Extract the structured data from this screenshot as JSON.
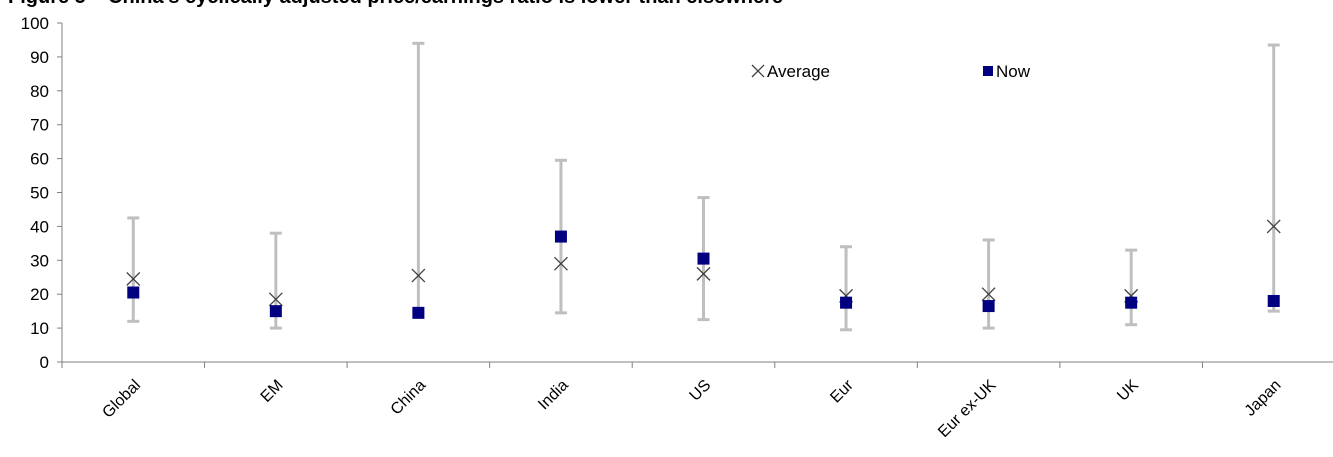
{
  "title": "Figure 5 – China's cyclically adjusted price/earnings ratio is lower than elsewhere",
  "chart_data": {
    "type": "scatter",
    "title": "Figure 5 – China's cyclically adjusted price/earnings ratio is lower than elsewhere",
    "xlabel": "",
    "ylabel": "",
    "ylim": [
      0,
      100
    ],
    "yticks": [
      0,
      10,
      20,
      30,
      40,
      50,
      60,
      70,
      80,
      90,
      100
    ],
    "grid": false,
    "legend_position": "top-right",
    "categories": [
      "Global",
      "EM",
      "China",
      "India",
      "US",
      "Eur",
      "Eur ex-UK",
      "UK",
      "Japan"
    ],
    "range": {
      "low": [
        12,
        10,
        14.5,
        14.5,
        12.5,
        9.5,
        10,
        11,
        15
      ],
      "high": [
        42.5,
        38,
        94,
        59.5,
        48.5,
        34,
        36,
        33,
        93.5
      ]
    },
    "series": [
      {
        "name": "Average",
        "marker": "x",
        "color": "#404040",
        "values": [
          24.5,
          18.5,
          25.5,
          29,
          26,
          19.5,
          20,
          19.5,
          40
        ]
      },
      {
        "name": "Now",
        "marker": "square",
        "color": "#000080",
        "values": [
          20.5,
          15,
          14.5,
          37,
          30.5,
          17.5,
          16.5,
          17.5,
          18
        ]
      }
    ],
    "colors": {
      "range": "#bfbfbf",
      "axis": "#808080"
    }
  }
}
